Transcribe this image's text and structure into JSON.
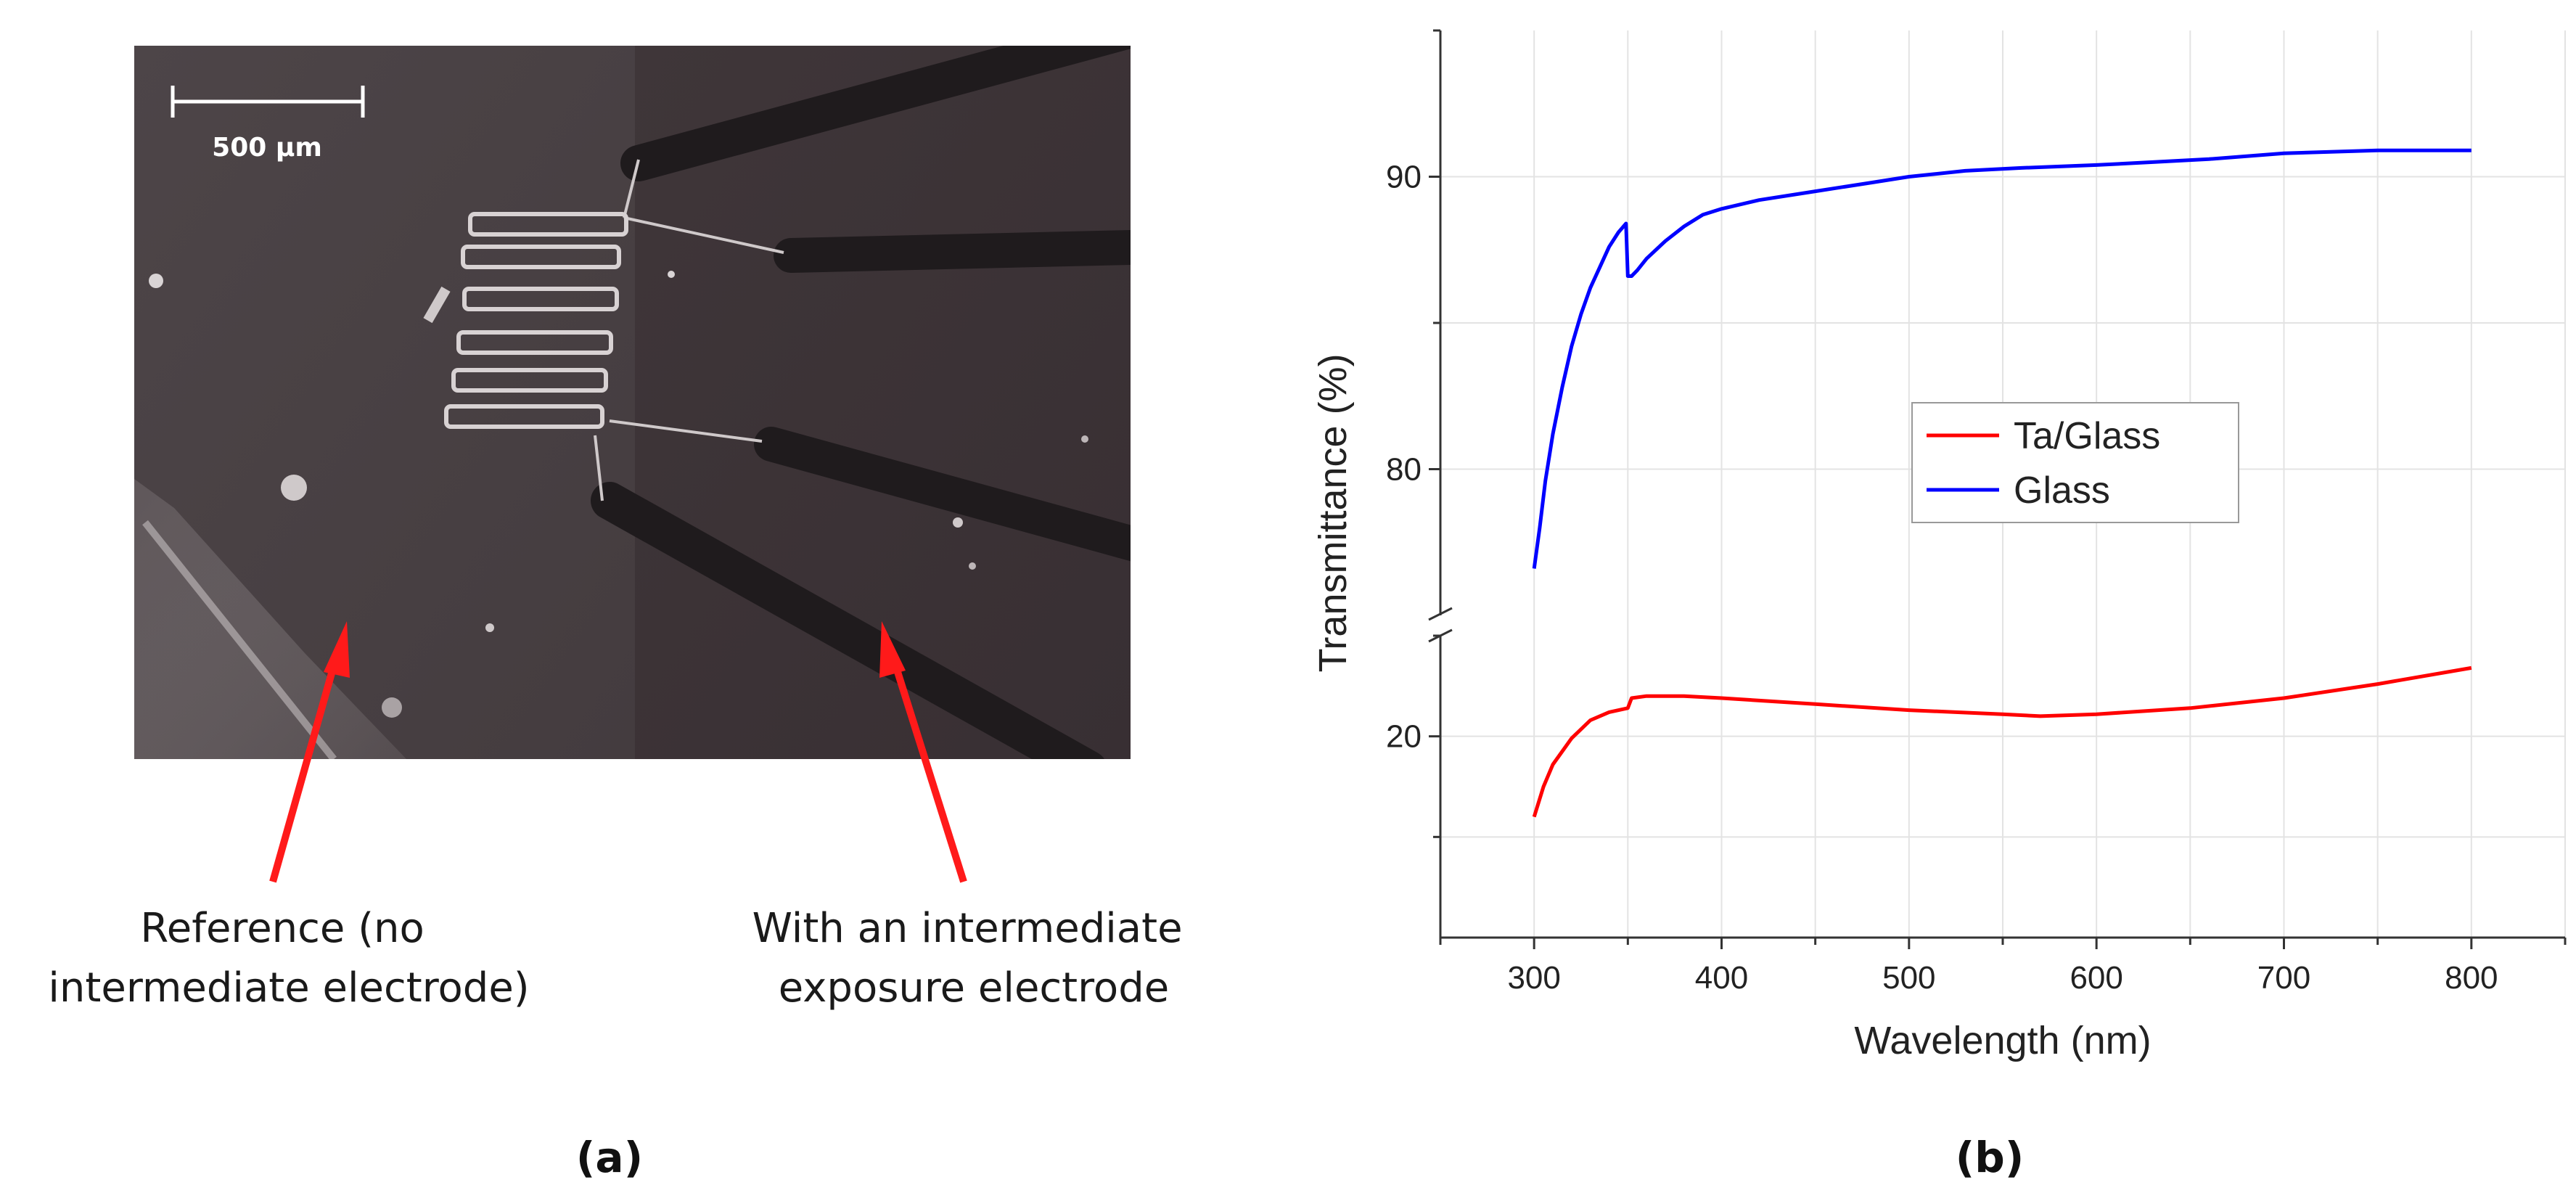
{
  "panel_a": {
    "label": "(a)",
    "scale_bar_label": "500 µm",
    "annotation_left": [
      "Reference (no",
      "intermediate electrode)"
    ],
    "annotation_right": [
      "With an intermediate",
      "exposure electrode"
    ],
    "colors": {
      "arrow": "#ff1a1a",
      "image_dark": "#3d3538",
      "image_left": "#4a4244"
    }
  },
  "panel_b": {
    "label": "(b)"
  },
  "chart_data": {
    "type": "line",
    "xlabel": "Wavelength (nm)",
    "ylabel": "Transmittance (%)",
    "xlim": [
      250,
      850
    ],
    "x_ticks": [
      300,
      400,
      500,
      600,
      700,
      800
    ],
    "y_break": true,
    "y_segments": [
      {
        "range": [
          10,
          25
        ],
        "ticks": [
          20
        ]
      },
      {
        "range": [
          75,
          95
        ],
        "ticks": [
          80,
          90
        ]
      }
    ],
    "grid": true,
    "legend": {
      "placement": "center-right"
    },
    "series": [
      {
        "name": "Ta/Glass",
        "color": "#ff0000",
        "x": [
          300,
          305,
          310,
          320,
          330,
          340,
          350,
          352,
          360,
          380,
          400,
          450,
          500,
          550,
          570,
          600,
          650,
          700,
          750,
          800
        ],
        "y": [
          16.0,
          17.5,
          18.6,
          19.9,
          20.8,
          21.2,
          21.4,
          21.9,
          22.0,
          22.0,
          21.9,
          21.6,
          21.3,
          21.1,
          21.0,
          21.1,
          21.4,
          21.9,
          22.6,
          23.4
        ]
      },
      {
        "name": "Glass",
        "color": "#0000ff",
        "x": [
          300,
          303,
          306,
          310,
          315,
          320,
          325,
          330,
          335,
          340,
          345,
          349,
          350,
          352,
          355,
          360,
          370,
          380,
          390,
          400,
          420,
          450,
          480,
          500,
          530,
          560,
          600,
          630,
          660,
          700,
          750,
          800
        ],
        "y": [
          76.6,
          78.0,
          79.6,
          81.2,
          82.8,
          84.2,
          85.3,
          86.2,
          86.9,
          87.6,
          88.1,
          88.4,
          86.6,
          86.6,
          86.8,
          87.2,
          87.8,
          88.3,
          88.7,
          88.9,
          89.2,
          89.5,
          89.8,
          90.0,
          90.2,
          90.3,
          90.4,
          90.5,
          90.6,
          90.8,
          90.9,
          90.9
        ]
      }
    ]
  }
}
